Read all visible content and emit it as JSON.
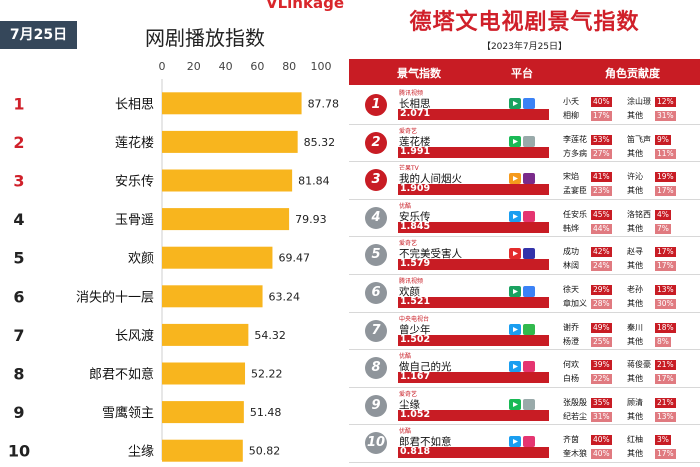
{
  "left": {
    "date": "7月25日",
    "brand": "VLinkage",
    "title": "网剧播放指数"
  },
  "chart_data": {
    "type": "bar",
    "orientation": "horizontal",
    "title": "网剧播放指数",
    "categories": [
      "长相思",
      "莲花楼",
      "安乐传",
      "玉骨遥",
      "欢颜",
      "消失的十一层",
      "长风渡",
      "郎君不如意",
      "雪鹰领主",
      "尘缘"
    ],
    "ranks": [
      "1",
      "2",
      "3",
      "4",
      "5",
      "6",
      "7",
      "8",
      "9",
      "10"
    ],
    "values": [
      87.78,
      85.32,
      81.84,
      79.93,
      69.47,
      63.24,
      54.32,
      52.22,
      51.48,
      50.82
    ],
    "value_labels": [
      "87.78",
      "85.32",
      "81.84",
      "79.93",
      "69.47",
      "63.24",
      "54.32",
      "52.22",
      "51.48",
      "50.82"
    ],
    "xlim": [
      0,
      100
    ],
    "xticks": [
      "0",
      "20",
      "40",
      "60",
      "80",
      "100"
    ],
    "grid": false,
    "colors": {
      "bar": "#f8b51e",
      "rank_top3": "#d0202a",
      "rank_other": "#222222"
    }
  },
  "right": {
    "title": "德塔文电视剧景气指数",
    "date": "【2023年7月25日】",
    "header": {
      "col1": "景气指数",
      "col2": "平台",
      "col3": "角色贡献度"
    },
    "rows": [
      {
        "rank": "1",
        "platform": "腾讯视频",
        "name": "长相思",
        "value": "2.071",
        "c": [
          [
            "小夭",
            "40%",
            "涂山璟",
            "12%"
          ],
          [
            "相柳",
            "17%",
            "其他",
            "31%"
          ]
        ]
      },
      {
        "rank": "2",
        "platform": "爱奇艺",
        "name": "莲花楼",
        "value": "1.991",
        "c": [
          [
            "李莲花",
            "53%",
            "笛飞声",
            "9%"
          ],
          [
            "方多病",
            "27%",
            "其他",
            "11%"
          ]
        ]
      },
      {
        "rank": "3",
        "platform": "芒果TV",
        "name": "我的人间烟火",
        "value": "1.909",
        "c": [
          [
            "宋焰",
            "41%",
            "许沁",
            "19%"
          ],
          [
            "孟宴臣",
            "23%",
            "其他",
            "17%"
          ]
        ]
      },
      {
        "rank": "4",
        "platform": "优酷",
        "name": "安乐传",
        "value": "1.845",
        "c": [
          [
            "任安乐",
            "45%",
            "洛铭西",
            "4%"
          ],
          [
            "韩烨",
            "44%",
            "其他",
            "7%"
          ]
        ]
      },
      {
        "rank": "5",
        "platform": "爱奇艺",
        "name": "不完美受害人",
        "value": "1.579",
        "c": [
          [
            "成功",
            "42%",
            "赵寻",
            "17%"
          ],
          [
            "林阔",
            "24%",
            "其他",
            "17%"
          ]
        ]
      },
      {
        "rank": "6",
        "platform": "腾讯视频",
        "name": "欢颜",
        "value": "1.521",
        "c": [
          [
            "徐天",
            "29%",
            "老孙",
            "13%"
          ],
          [
            "章加义",
            "28%",
            "其他",
            "30%"
          ]
        ]
      },
      {
        "rank": "7",
        "platform": "中央电视台",
        "name": "曾少年",
        "value": "1.502",
        "c": [
          [
            "谢乔",
            "49%",
            "秦川",
            "18%"
          ],
          [
            "杨澄",
            "25%",
            "其他",
            "8%"
          ]
        ]
      },
      {
        "rank": "8",
        "platform": "优酷",
        "name": "做自己的光",
        "value": "1.167",
        "c": [
          [
            "何欢",
            "39%",
            "蒋俊豪",
            "21%"
          ],
          [
            "白杨",
            "22%",
            "其他",
            "17%"
          ]
        ]
      },
      {
        "rank": "9",
        "platform": "爱奇艺",
        "name": "尘缘",
        "value": "1.052",
        "c": [
          [
            "张殷殷",
            "35%",
            "顾清",
            "21%"
          ],
          [
            "纪若尘",
            "31%",
            "其他",
            "13%"
          ]
        ]
      },
      {
        "rank": "10",
        "platform": "优酷",
        "name": "郎君不如意",
        "value": "0.818",
        "c": [
          [
            "齐茵",
            "40%",
            "红柚",
            "3%"
          ],
          [
            "奎木狼",
            "40%",
            "其他",
            "17%"
          ]
        ]
      }
    ]
  }
}
